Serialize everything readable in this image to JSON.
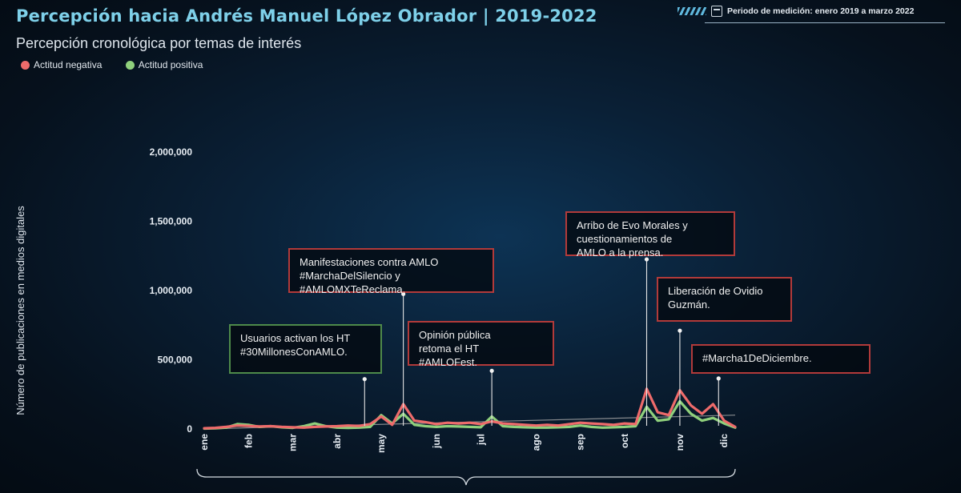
{
  "header": {
    "title": "Percepción hacia Andrés Manuel López Obrador | 2019-2022",
    "subtitle": "Percepción cronológica por temas de interés",
    "period": "Periodo de medición: enero 2019  a marzo 2022"
  },
  "colors": {
    "negative": "#ee6b6b",
    "positive": "#8fd07c",
    "annotation_border": "#b23a3a",
    "annotation_border_green": "#4e8a4a",
    "trend": "#a8a8a8"
  },
  "chart_data": {
    "type": "line",
    "title": "",
    "ylabel": "Número de publicaciones en medios digitales",
    "xlabel": "",
    "ylim": [
      0,
      2000000
    ],
    "y_ticks": [
      0,
      500000,
      1000000,
      1500000,
      2000000
    ],
    "y_tick_labels": [
      "0",
      "500,000",
      "1,000,000",
      "1,500,000",
      "2,000,000"
    ],
    "month_ticks": [
      {
        "label": "ene",
        "pos": 0
      },
      {
        "label": "feb",
        "pos": 4
      },
      {
        "label": "mar",
        "pos": 8
      },
      {
        "label": "abr",
        "pos": 12
      },
      {
        "label": "may",
        "pos": 16
      },
      {
        "label": "jun",
        "pos": 21
      },
      {
        "label": "jul",
        "pos": 25
      },
      {
        "label": "ago",
        "pos": 30
      },
      {
        "label": "sep",
        "pos": 34
      },
      {
        "label": "oct",
        "pos": 38
      },
      {
        "label": "nov",
        "pos": 43
      },
      {
        "label": "dic",
        "pos": 47
      }
    ],
    "x_range": [
      0,
      48
    ],
    "grid": false,
    "legend_position": "top-left",
    "series": [
      {
        "name": "Actitud negativa",
        "color": "#ee6b6b",
        "values": [
          5000,
          8000,
          15000,
          25000,
          22000,
          18000,
          20000,
          15000,
          12000,
          10000,
          15000,
          18000,
          20000,
          25000,
          22000,
          35000,
          90000,
          30000,
          180000,
          60000,
          50000,
          35000,
          45000,
          40000,
          45000,
          35000,
          55000,
          40000,
          35000,
          30000,
          25000,
          30000,
          25000,
          35000,
          45000,
          40000,
          35000,
          30000,
          40000,
          35000,
          290000,
          120000,
          100000,
          280000,
          170000,
          110000,
          180000,
          60000,
          15000
        ]
      },
      {
        "name": "Actitud positiva",
        "color": "#8fd07c",
        "values": [
          3000,
          5000,
          10000,
          35000,
          30000,
          15000,
          20000,
          12000,
          8000,
          20000,
          40000,
          20000,
          10000,
          8000,
          10000,
          15000,
          100000,
          40000,
          110000,
          30000,
          20000,
          15000,
          20000,
          18000,
          15000,
          12000,
          90000,
          20000,
          15000,
          12000,
          10000,
          10000,
          12000,
          15000,
          25000,
          15000,
          10000,
          12000,
          15000,
          20000,
          160000,
          60000,
          70000,
          200000,
          110000,
          60000,
          80000,
          40000,
          10000
        ]
      }
    ],
    "trend_line": {
      "start": 0,
      "end": 100000
    },
    "annotations": [
      {
        "text": "Usuarios activan los HT\n#30MillonesConAMLO.",
        "x": 14.5,
        "y": 360000,
        "style": "green"
      },
      {
        "text": "Manifestaciones contra AMLO\n#MarchaDelSilencio y\n#AMLOMXTeReclama.",
        "x": 18,
        "y": 975000,
        "style": "red"
      },
      {
        "text": "Opinión pública\nretoma el HT\n#AMLOFest.",
        "x": 26,
        "y": 420000,
        "style": "red"
      },
      {
        "text": "Arribo de Evo Morales y\ncuestionamientos de\nAMLO a la prensa.",
        "x": 40,
        "y": 1225000,
        "style": "red"
      },
      {
        "text": "Liberación de Ovidio\nGuzmán.",
        "x": 43,
        "y": 710000,
        "style": "red"
      },
      {
        "text": "#Marcha1DeDiciembre.",
        "x": 46.5,
        "y": 365000,
        "style": "red"
      }
    ]
  }
}
